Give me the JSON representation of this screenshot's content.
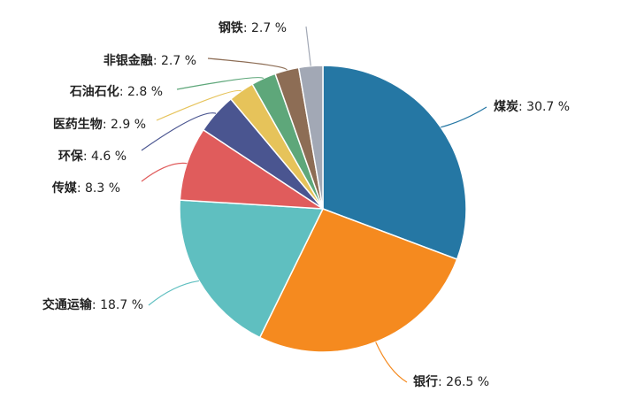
{
  "chart_data": {
    "type": "pie",
    "title": "",
    "start_angle": 90,
    "direction": "clockwise",
    "slices": [
      {
        "name": "煤炭",
        "value": 30.7,
        "color": "#2577a4"
      },
      {
        "name": "银行",
        "value": 26.5,
        "color": "#f58a1f"
      },
      {
        "name": "交通运输",
        "value": 18.7,
        "color": "#5fbfc0"
      },
      {
        "name": "传媒",
        "value": 8.3,
        "color": "#e05c5c"
      },
      {
        "name": "环保",
        "value": 4.6,
        "color": "#4a5590"
      },
      {
        "name": "医药生物",
        "value": 2.9,
        "color": "#e6c35a"
      },
      {
        "name": "石油石化",
        "value": 2.8,
        "color": "#5ea77a"
      },
      {
        "name": "非银金融",
        "value": 2.7,
        "color": "#8d6d55"
      },
      {
        "name": "钢铁",
        "value": 2.7,
        "color": "#a2a8b5"
      }
    ],
    "value_suffix": " %",
    "label_separator": ": "
  }
}
